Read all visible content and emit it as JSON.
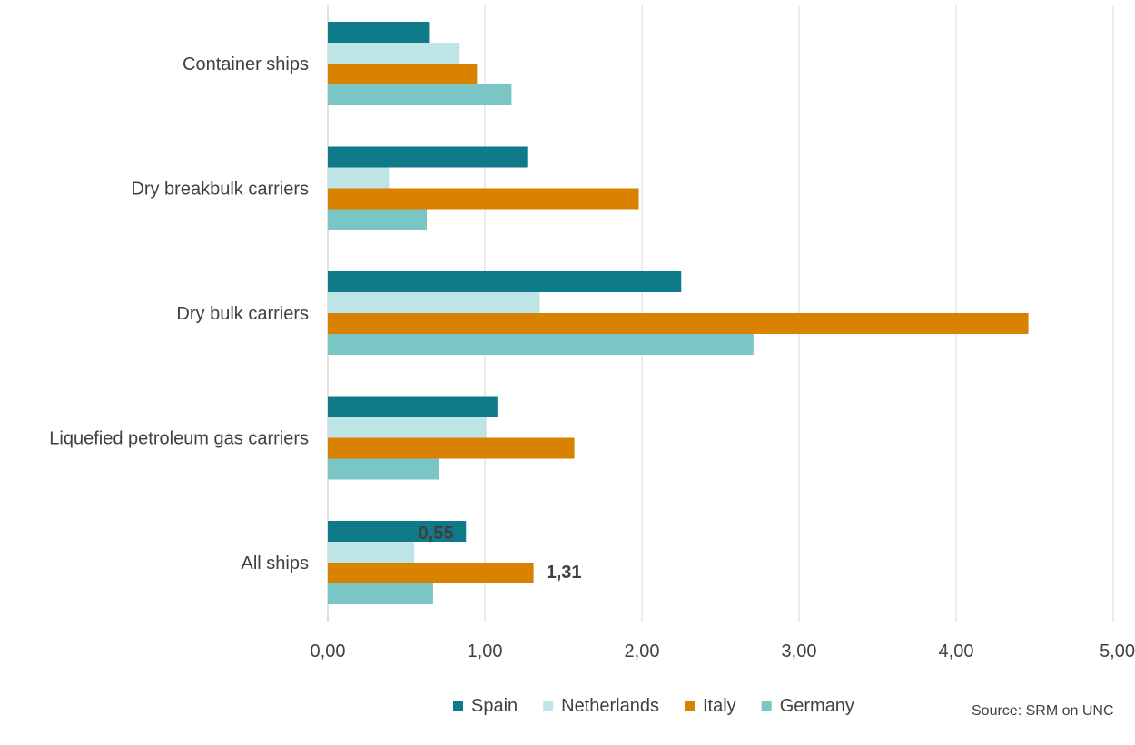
{
  "chart_data": {
    "type": "bar",
    "orientation": "horizontal",
    "categories": [
      "Container ships",
      "Dry breakbulk carriers",
      "Dry bulk carriers",
      "Liquefied petroleum gas carriers",
      "All ships"
    ],
    "series": [
      {
        "name": "Spain",
        "color": "#0e7a8a",
        "values": [
          0.65,
          1.27,
          2.25,
          1.08,
          0.88
        ]
      },
      {
        "name": "Netherlands",
        "color": "#bfe4e6",
        "values": [
          0.84,
          0.39,
          1.35,
          1.01,
          0.55
        ]
      },
      {
        "name": "Italy",
        "color": "#d98200",
        "values": [
          0.95,
          1.98,
          4.46,
          1.57,
          1.31
        ]
      },
      {
        "name": "Germany",
        "color": "#7ac6c4",
        "values": [
          1.17,
          0.63,
          2.71,
          0.71,
          0.67
        ]
      }
    ],
    "data_labels": [
      {
        "category": "All ships",
        "series": "Netherlands",
        "text": "0,55"
      },
      {
        "category": "All ships",
        "series": "Italy",
        "text": "1,31"
      }
    ],
    "xlim": [
      0,
      5
    ],
    "x_ticks": [
      "0,00",
      "1,00",
      "2,00",
      "3,00",
      "4,00",
      "5,00"
    ],
    "grid": true,
    "legend_position": "bottom",
    "title": "",
    "xlabel": "",
    "ylabel": ""
  },
  "source_note": "Source: SRM on UNC"
}
